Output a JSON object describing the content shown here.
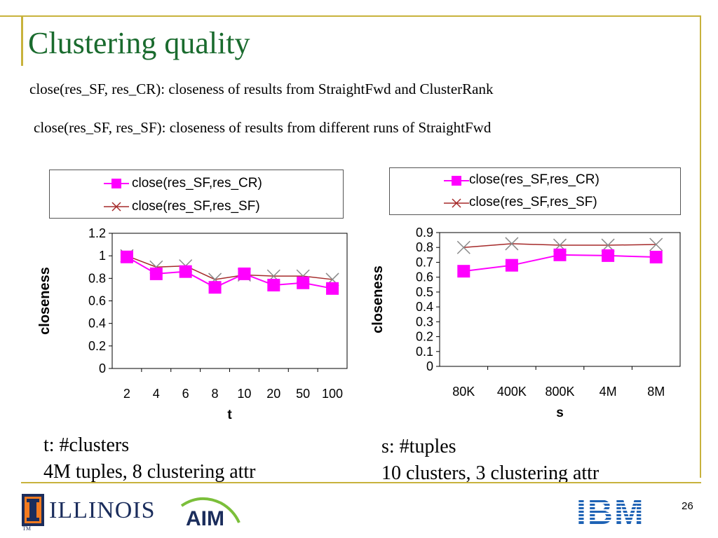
{
  "slide": {
    "title": "Clustering quality",
    "subtitle_1": "close(res_SF, res_CR):  closeness of results from StraightFwd and ClusterRank",
    "subtitle_2": "close(res_SF, res_SF):  closeness of results from different runs of StraightFwd",
    "page_number": "26",
    "colors": {
      "title": "#1a6b2e",
      "rule": "#c8b23c",
      "series_cr": "#ff00ff",
      "series_sf": "#a52a2a"
    }
  },
  "notes": {
    "left_line_1": "t: #clusters",
    "left_line_2": "4M tuples, 8 clustering attr",
    "right_line_1": "s: #tuples",
    "right_line_2": "10 clusters, 3 clustering attr"
  },
  "logos": {
    "illinois": "ILLINOIS",
    "aim": "AIM",
    "ibm": "IBM",
    "tm": "TM"
  },
  "chart_data": [
    {
      "type": "line",
      "xlabel": "t",
      "ylabel": "closeness",
      "categories": [
        "2",
        "4",
        "6",
        "8",
        "10",
        "20",
        "50",
        "100"
      ],
      "ylim": [
        0,
        1.2
      ],
      "yticks": [
        "0",
        "0.2",
        "0.4",
        "0.6",
        "0.8",
        "1",
        "1.2"
      ],
      "legend_position": "top",
      "series": [
        {
          "name": "close(res_SF,res_CR)",
          "marker": "square",
          "values": [
            0.99,
            0.84,
            0.86,
            0.72,
            0.84,
            0.74,
            0.76,
            0.71
          ]
        },
        {
          "name": "close(res_SF,res_SF)",
          "marker": "x",
          "values": [
            1.0,
            0.9,
            0.91,
            0.79,
            0.83,
            0.82,
            0.82,
            0.79
          ]
        }
      ]
    },
    {
      "type": "line",
      "xlabel": "s",
      "ylabel": "closeness",
      "categories": [
        "80K",
        "400K",
        "800K",
        "4M",
        "8M"
      ],
      "ylim": [
        0,
        0.9
      ],
      "yticks": [
        "0",
        "0.1",
        "0.2",
        "0.3",
        "0.4",
        "0.5",
        "0.6",
        "0.7",
        "0.8",
        "0.9"
      ],
      "legend_position": "top",
      "series": [
        {
          "name": "close(res_SF,res_CR)",
          "marker": "square",
          "values": [
            0.64,
            0.68,
            0.75,
            0.745,
            0.735
          ]
        },
        {
          "name": "close(res_SF,res_SF)",
          "marker": "x",
          "values": [
            0.8,
            0.825,
            0.815,
            0.815,
            0.82
          ]
        }
      ]
    }
  ]
}
